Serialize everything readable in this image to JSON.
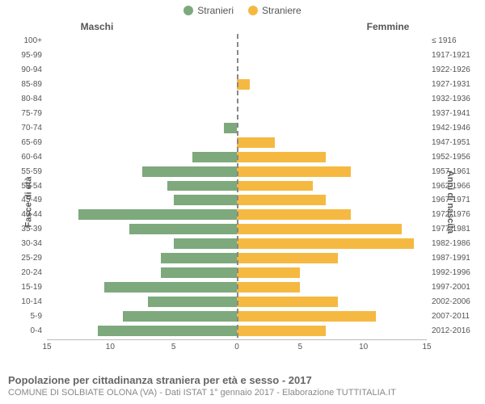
{
  "legend": {
    "male": {
      "label": "Stranieri",
      "color": "#7da97d"
    },
    "female": {
      "label": "Straniere",
      "color": "#f5b942"
    }
  },
  "side_titles": {
    "male": "Maschi",
    "female": "Femmine"
  },
  "axis_titles": {
    "left": "Fasce di età",
    "right": "Anni di nascita"
  },
  "x_axis": {
    "max": 15,
    "ticks": [
      15,
      10,
      5,
      0,
      5,
      10,
      15
    ]
  },
  "colors": {
    "male_bar": "#7da97d",
    "female_bar": "#f5b942",
    "centerline": "#888",
    "baseline": "#bbb",
    "text": "#555",
    "subtext": "#888"
  },
  "fontsize": {
    "legend": 12,
    "side_title": 12,
    "row_label": 10,
    "tick": 10,
    "footer_title": 13,
    "footer_sub": 11
  },
  "rows": [
    {
      "age": "100+",
      "birth": "≤ 1916",
      "m": 0,
      "f": 0
    },
    {
      "age": "95-99",
      "birth": "1917-1921",
      "m": 0,
      "f": 0
    },
    {
      "age": "90-94",
      "birth": "1922-1926",
      "m": 0,
      "f": 0
    },
    {
      "age": "85-89",
      "birth": "1927-1931",
      "m": 0,
      "f": 1
    },
    {
      "age": "80-84",
      "birth": "1932-1936",
      "m": 0,
      "f": 0
    },
    {
      "age": "75-79",
      "birth": "1937-1941",
      "m": 0,
      "f": 0
    },
    {
      "age": "70-74",
      "birth": "1942-1946",
      "m": 1,
      "f": 0
    },
    {
      "age": "65-69",
      "birth": "1947-1951",
      "m": 0,
      "f": 3
    },
    {
      "age": "60-64",
      "birth": "1952-1956",
      "m": 3.5,
      "f": 7
    },
    {
      "age": "55-59",
      "birth": "1957-1961",
      "m": 7.5,
      "f": 9
    },
    {
      "age": "50-54",
      "birth": "1962-1966",
      "m": 5.5,
      "f": 6
    },
    {
      "age": "45-49",
      "birth": "1967-1971",
      "m": 5,
      "f": 7
    },
    {
      "age": "40-44",
      "birth": "1972-1976",
      "m": 12.5,
      "f": 9
    },
    {
      "age": "35-39",
      "birth": "1977-1981",
      "m": 8.5,
      "f": 13
    },
    {
      "age": "30-34",
      "birth": "1982-1986",
      "m": 5,
      "f": 14
    },
    {
      "age": "25-29",
      "birth": "1987-1991",
      "m": 6,
      "f": 8
    },
    {
      "age": "20-24",
      "birth": "1992-1996",
      "m": 6,
      "f": 5
    },
    {
      "age": "15-19",
      "birth": "1997-2001",
      "m": 10.5,
      "f": 5
    },
    {
      "age": "10-14",
      "birth": "2002-2006",
      "m": 7,
      "f": 8
    },
    {
      "age": "5-9",
      "birth": "2007-2011",
      "m": 9,
      "f": 11
    },
    {
      "age": "0-4",
      "birth": "2012-2016",
      "m": 11,
      "f": 7
    }
  ],
  "footer": {
    "title": "Popolazione per cittadinanza straniera per età e sesso - 2017",
    "subtitle": "COMUNE DI SOLBIATE OLONA (VA) - Dati ISTAT 1° gennaio 2017 - Elaborazione TUTTITALIA.IT"
  }
}
